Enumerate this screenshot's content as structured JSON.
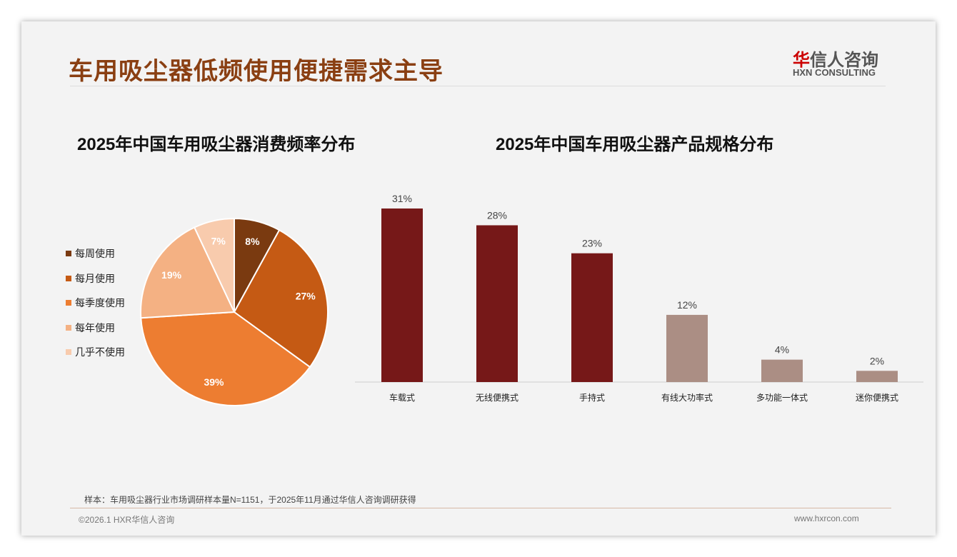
{
  "header": {
    "title": "车用吸尘器低频使用便捷需求主导",
    "logo_cn_red": "华",
    "logo_cn": "信人咨询",
    "logo_en": "HXN CONSULTING"
  },
  "footer": {
    "note": "样本：车用吸尘器行业市场调研样本量N=1151，于2025年11月通过华信人咨询调研获得",
    "copyright": "©2026.1 HXR华信人咨询",
    "url": "www.hxrcon.com"
  },
  "chart_data": [
    {
      "type": "pie",
      "title": "2025年中国车用吸尘器消费频率分布",
      "legend_position": "left",
      "categories": [
        "每周使用",
        "每月使用",
        "每季度使用",
        "每年使用",
        "几乎不使用"
      ],
      "values": [
        8,
        27,
        39,
        19,
        7
      ],
      "labels": [
        "8%",
        "27%",
        "39%",
        "19%",
        "7%"
      ],
      "colors": [
        "#7a3a10",
        "#c55a14",
        "#ed7d31",
        "#f4b183",
        "#f8cbad"
      ]
    },
    {
      "type": "bar",
      "title": "2025年中国车用吸尘器产品规格分布",
      "categories": [
        "车载式",
        "无线便携式",
        "手持式",
        "有线大功率式",
        "多功能一体式",
        "迷你便携式"
      ],
      "values": [
        31,
        28,
        23,
        12,
        4,
        2
      ],
      "labels": [
        "31%",
        "28%",
        "23%",
        "12%",
        "4%",
        "2%"
      ],
      "colors": [
        "#761818",
        "#761818",
        "#761818",
        "#ab8e84",
        "#ab8e84",
        "#ab8e84"
      ],
      "ylim": [
        0,
        31
      ]
    }
  ]
}
